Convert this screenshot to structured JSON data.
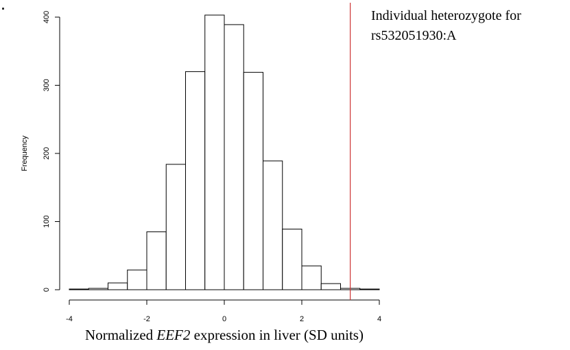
{
  "chart_data": {
    "type": "bar",
    "subtype": "histogram",
    "bin_edges": [
      -4,
      -3.5,
      -3,
      -2.5,
      -2,
      -1.5,
      -1,
      -0.5,
      0,
      0.5,
      1,
      1.5,
      2,
      2.5,
      3,
      3.5,
      4
    ],
    "values": [
      1,
      2,
      10,
      29,
      85,
      184,
      320,
      403,
      389,
      319,
      189,
      89,
      35,
      9,
      2,
      1
    ],
    "xlim": [
      -4,
      4
    ],
    "ylim": [
      0,
      400
    ],
    "x_ticks": [
      -4,
      -2,
      0,
      2,
      4
    ],
    "y_ticks": [
      0,
      100,
      200,
      300,
      400
    ],
    "ylabel": "Frequency",
    "xlabel": {
      "prefix": "Normalized ",
      "gene": "EEF2",
      "suffix": " expression in liver (SD units)"
    },
    "corner_mark": ".",
    "reference_line": {
      "x": 3.25,
      "color": "#cc3333",
      "label_line1": "Individual heterozygote for",
      "label_line2": "rs532051930:A"
    },
    "bar_fill": "#ffffff",
    "bar_stroke": "#000000",
    "grid": false,
    "legend": "none"
  }
}
